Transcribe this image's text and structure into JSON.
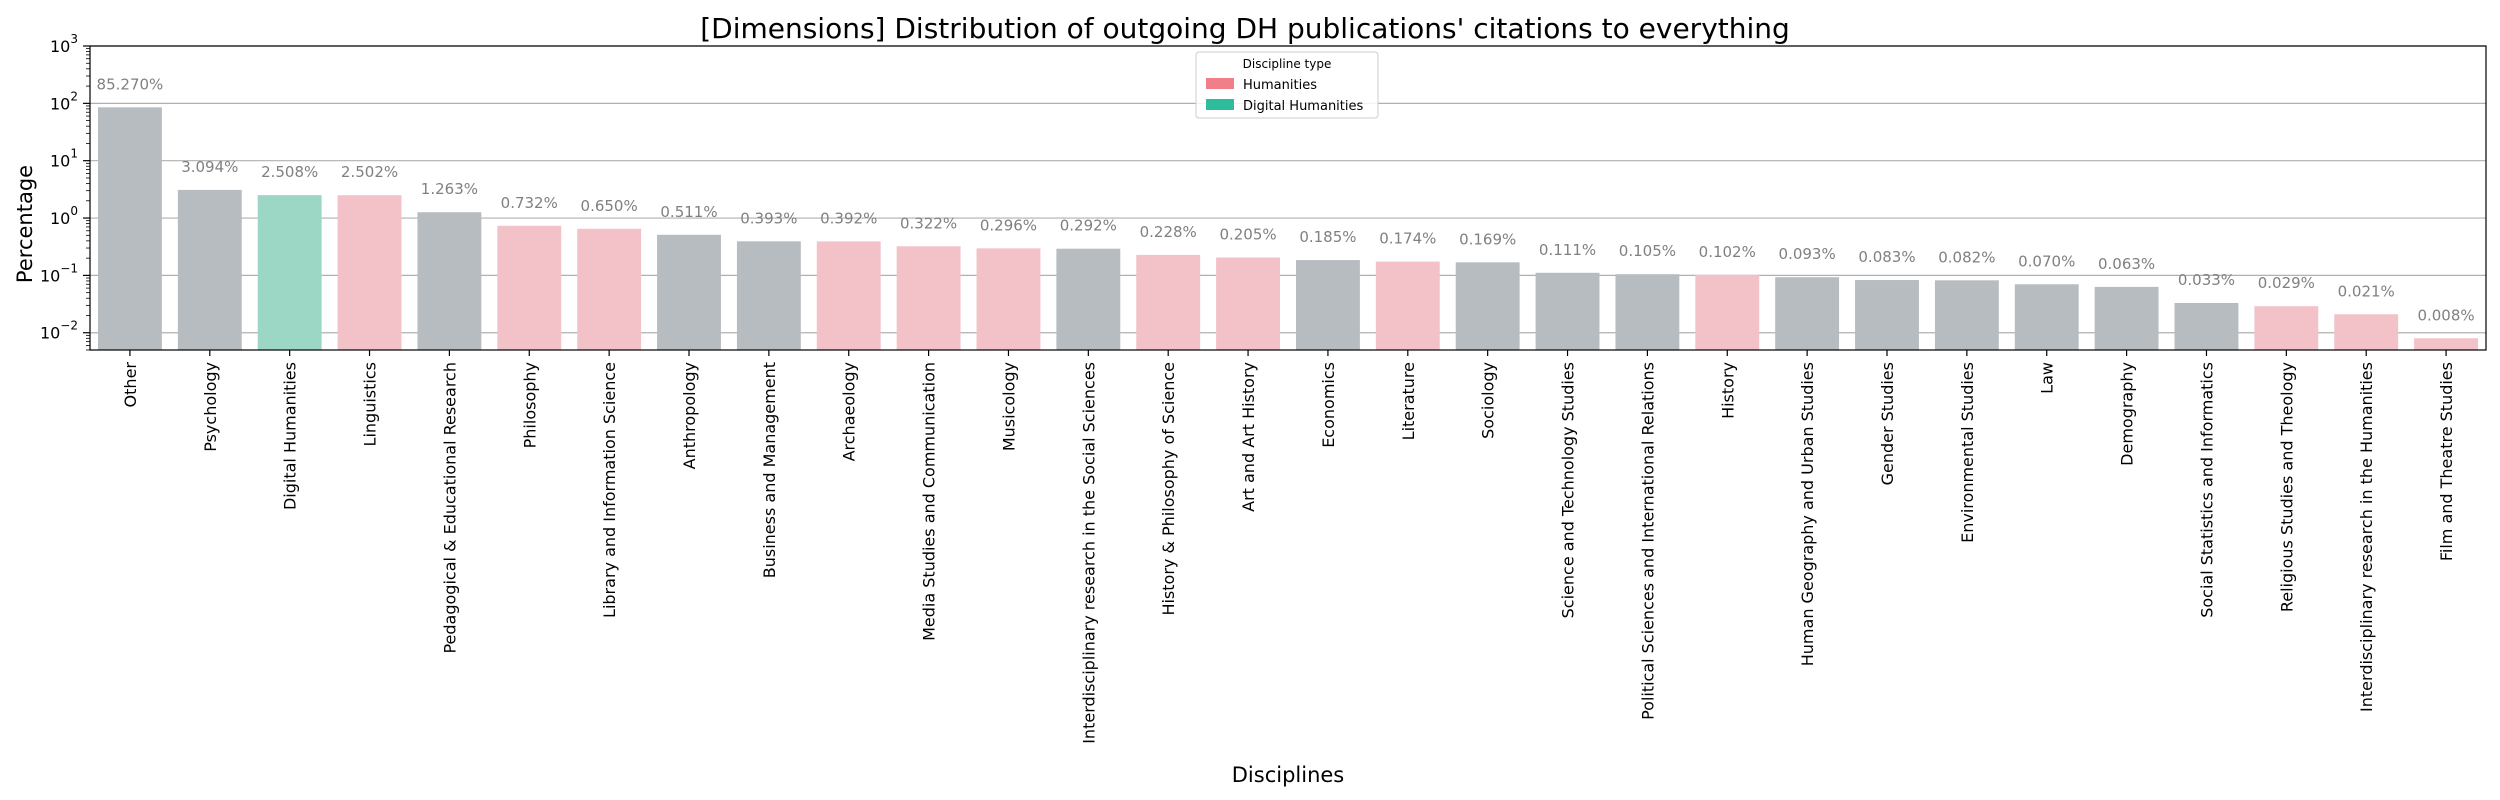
{
  "chart_data": {
    "type": "bar",
    "title": "[Dimensions] Distribution of outgoing DH publications' citations to everything",
    "xlabel": "Disciplines",
    "ylabel": "Percentage",
    "yscale": "log",
    "ylim": [
      0.005,
      1000
    ],
    "yticks": [
      {
        "value": 0.01,
        "base": "10",
        "exp": "−2"
      },
      {
        "value": 0.1,
        "base": "10",
        "exp": "−1"
      },
      {
        "value": 1,
        "base": "10",
        "exp": "0"
      },
      {
        "value": 10,
        "base": "10",
        "exp": "1"
      },
      {
        "value": 100,
        "base": "10",
        "exp": "2"
      },
      {
        "value": 1000,
        "base": "10",
        "exp": "3"
      }
    ],
    "grid": "horizontal",
    "legend": {
      "title": "Discipline type",
      "placement": "top-center",
      "entries": [
        {
          "label": "Humanities",
          "color": "#f07f8a"
        },
        {
          "label": "Digital Humanities",
          "color": "#2ebd9c"
        }
      ]
    },
    "bar_colors": {
      "Humanities": "#f2c2c8",
      "Digital Humanities": "#9cd7c6",
      "Other": "#b7bcc0"
    },
    "categories": [
      "Other",
      "Psychology",
      "Digital Humanities",
      "Linguistics",
      "Pedagogical & Educational Research",
      "Philosophy",
      "Library and Information Science",
      "Anthropology",
      "Business and Management",
      "Archaeology",
      "Media Studies and Communication",
      "Musicology",
      "Interdisciplinary research in the Social Sciences",
      "History & Philosophy of Science",
      "Art and Art History",
      "Economics",
      "Literature",
      "Sociology",
      "Science and Technology Studies",
      "Political Sciences and International Relations",
      "History",
      "Human Geography and Urban Studies",
      "Gender Studies",
      "Environmental Studies",
      "Law",
      "Demography",
      "Social Statistics and Informatics",
      "Religious Studies and Theology",
      "Interdisciplinary research in the Humanities",
      "Film and Theatre Studies"
    ],
    "values": [
      85.27,
      3.094,
      2.508,
      2.502,
      1.263,
      0.732,
      0.65,
      0.511,
      0.393,
      0.392,
      0.322,
      0.296,
      0.292,
      0.228,
      0.205,
      0.185,
      0.174,
      0.169,
      0.111,
      0.105,
      0.102,
      0.093,
      0.083,
      0.082,
      0.07,
      0.063,
      0.033,
      0.029,
      0.021,
      0.008
    ],
    "data_labels": [
      "85.270%",
      "3.094%",
      "2.508%",
      "2.502%",
      "1.263%",
      "0.732%",
      "0.650%",
      "0.511%",
      "0.393%",
      "0.392%",
      "0.322%",
      "0.296%",
      "0.292%",
      "0.228%",
      "0.205%",
      "0.185%",
      "0.174%",
      "0.169%",
      "0.111%",
      "0.105%",
      "0.102%",
      "0.093%",
      "0.083%",
      "0.082%",
      "0.070%",
      "0.063%",
      "0.033%",
      "0.029%",
      "0.021%",
      "0.008%"
    ],
    "types": [
      "Other",
      "Other",
      "Digital Humanities",
      "Humanities",
      "Other",
      "Humanities",
      "Humanities",
      "Other",
      "Other",
      "Humanities",
      "Humanities",
      "Humanities",
      "Other",
      "Humanities",
      "Humanities",
      "Other",
      "Humanities",
      "Other",
      "Other",
      "Other",
      "Humanities",
      "Other",
      "Other",
      "Other",
      "Other",
      "Other",
      "Other",
      "Humanities",
      "Humanities",
      "Humanities"
    ]
  }
}
